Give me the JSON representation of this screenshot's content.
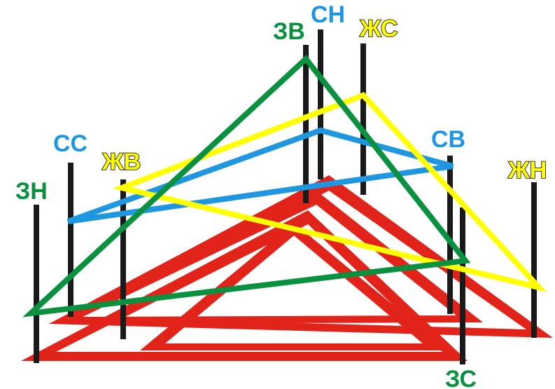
{
  "colors": {
    "red": "#e2231a",
    "black": "#1a1a1a",
    "green": "#0a9140",
    "blue": "#1e96e0",
    "yellow": "#ffff00"
  },
  "labels": {
    "zn": "ЗН",
    "ss": "СС",
    "zhv": "ЖВ",
    "zv": "ЗВ",
    "sn": "СН",
    "zhs": "ЖС",
    "sv": "СВ",
    "zhn": "ЖН",
    "zs": "ЗС"
  }
}
